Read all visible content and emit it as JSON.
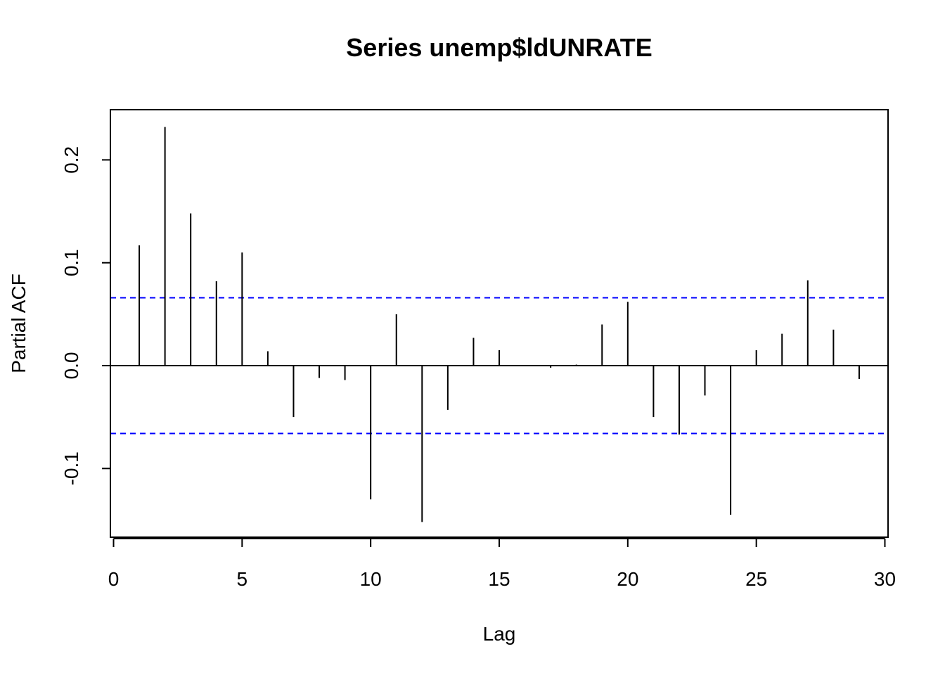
{
  "chart_data": {
    "type": "bar",
    "title": "Series  unemp$ldUNRATE",
    "xlabel": "Lag",
    "ylabel": "Partial ACF",
    "xlim": [
      0,
      30
    ],
    "ylim": [
      -0.16,
      0.24
    ],
    "x_ticks": [
      "0",
      "5",
      "10",
      "15",
      "20",
      "25",
      "30"
    ],
    "y_ticks": [
      "-0.1",
      "0.0",
      "0.1",
      "0.2"
    ],
    "confidence_bound": 0.066,
    "confidence_color": "#0000ff",
    "bar_color": "#000000",
    "x": [
      1,
      2,
      3,
      4,
      5,
      6,
      7,
      8,
      9,
      10,
      11,
      12,
      13,
      14,
      15,
      16,
      17,
      18,
      19,
      20,
      21,
      22,
      23,
      24,
      25,
      26,
      27,
      28,
      29
    ],
    "values": [
      0.117,
      0.232,
      0.148,
      0.082,
      0.11,
      0.014,
      -0.05,
      -0.012,
      -0.014,
      -0.13,
      0.05,
      -0.152,
      -0.043,
      0.027,
      0.015,
      0.0,
      -0.002,
      0.001,
      0.04,
      0.062,
      -0.05,
      -0.067,
      -0.029,
      -0.145,
      0.015,
      0.031,
      0.083,
      0.035,
      -0.013
    ]
  }
}
